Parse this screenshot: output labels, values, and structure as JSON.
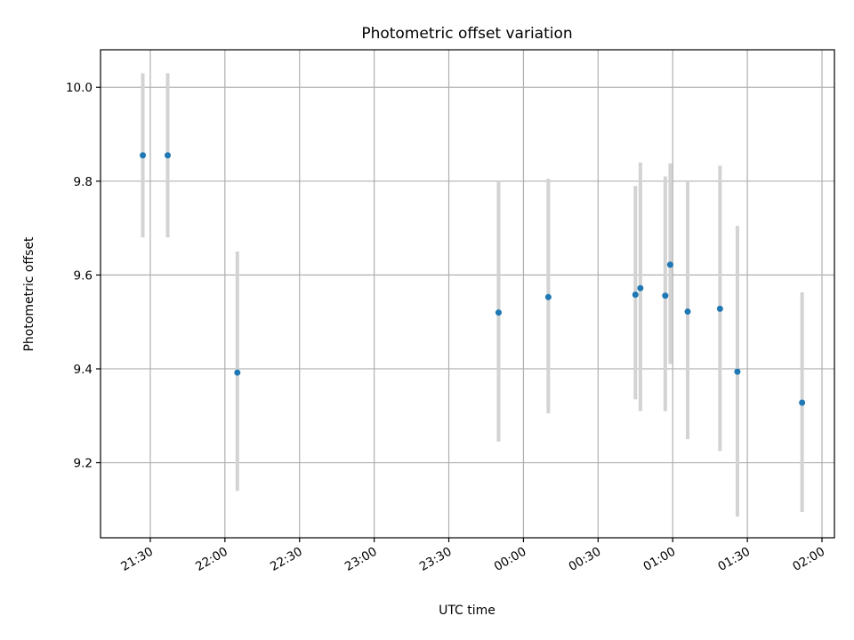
{
  "chart_data": {
    "type": "scatter",
    "title": "Photometric offset variation",
    "xlabel": "UTC time",
    "ylabel": "Photometric offset",
    "x_axis_type": "time",
    "grid": true,
    "colors": {
      "points": "#1f77b4",
      "error_bars": "#d3d3d3",
      "grid": "#b0b0b0"
    },
    "xlim": [
      "21:10",
      "02:05"
    ],
    "ylim": [
      9.04,
      10.08
    ],
    "x_ticks": [
      "21:30",
      "22:00",
      "22:30",
      "23:00",
      "23:30",
      "00:00",
      "00:30",
      "01:00",
      "01:30",
      "02:00"
    ],
    "y_ticks": [
      "9.2",
      "9.4",
      "9.6",
      "9.8",
      "10.0"
    ],
    "points": [
      {
        "x": "21:27",
        "y": 9.855,
        "err_low": 9.68,
        "err_high": 10.03
      },
      {
        "x": "21:37",
        "y": 9.855,
        "err_low": 9.68,
        "err_high": 10.03
      },
      {
        "x": "22:05",
        "y": 9.392,
        "err_low": 9.14,
        "err_high": 9.65
      },
      {
        "x": "23:50",
        "y": 9.52,
        "err_low": 9.245,
        "err_high": 9.8
      },
      {
        "x": "00:10",
        "y": 9.553,
        "err_low": 9.305,
        "err_high": 9.805
      },
      {
        "x": "00:45",
        "y": 9.558,
        "err_low": 9.335,
        "err_high": 9.79
      },
      {
        "x": "00:47",
        "y": 9.572,
        "err_low": 9.31,
        "err_high": 9.84
      },
      {
        "x": "00:57",
        "y": 9.556,
        "err_low": 9.31,
        "err_high": 9.81
      },
      {
        "x": "00:59",
        "y": 9.622,
        "err_low": 9.41,
        "err_high": 9.838
      },
      {
        "x": "01:06",
        "y": 9.522,
        "err_low": 9.25,
        "err_high": 9.8
      },
      {
        "x": "01:19",
        "y": 9.528,
        "err_low": 9.225,
        "err_high": 9.833
      },
      {
        "x": "01:26",
        "y": 9.394,
        "err_low": 9.085,
        "err_high": 9.705
      },
      {
        "x": "01:52",
        "y": 9.328,
        "err_low": 9.095,
        "err_high": 9.563
      }
    ]
  }
}
